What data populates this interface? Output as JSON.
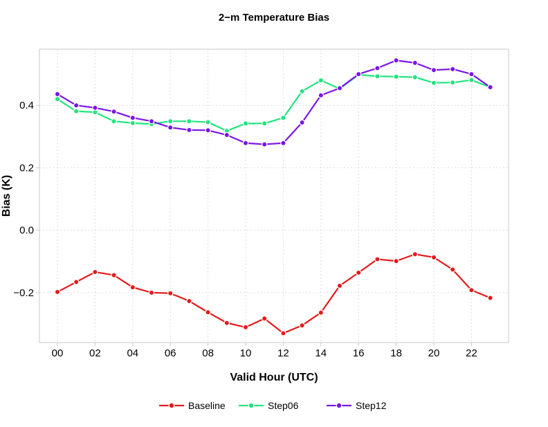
{
  "chart_data": {
    "type": "line",
    "title": "2−m Temperature Bias",
    "xlabel": "Valid Hour (UTC)",
    "ylabel": "Bias (K)",
    "categories": [
      "00",
      "01",
      "02",
      "03",
      "04",
      "05",
      "06",
      "07",
      "08",
      "09",
      "10",
      "11",
      "12",
      "13",
      "14",
      "15",
      "16",
      "17",
      "18",
      "19",
      "20",
      "21",
      "22",
      "23"
    ],
    "x_tick_labels": [
      "00",
      "02",
      "04",
      "06",
      "08",
      "10",
      "12",
      "14",
      "16",
      "18",
      "20",
      "22"
    ],
    "y_ticks": [
      -0.2,
      0.0,
      0.2,
      0.4
    ],
    "y_tick_labels": [
      "−0.2",
      "0.0",
      "0.2",
      "0.4"
    ],
    "ylim": [
      -0.36,
      0.58
    ],
    "grid": true,
    "legend_position": "bottom",
    "series": [
      {
        "name": "Baseline",
        "color": "#e41a1c",
        "values": [
          -0.198,
          -0.166,
          -0.134,
          -0.144,
          -0.183,
          -0.2,
          -0.202,
          -0.227,
          -0.263,
          -0.297,
          -0.311,
          -0.283,
          -0.33,
          -0.305,
          -0.264,
          -0.178,
          -0.136,
          -0.093,
          -0.099,
          -0.077,
          -0.087,
          -0.126,
          -0.192,
          -0.217
        ]
      },
      {
        "name": "Step06",
        "color": "#1fe57d",
        "values": [
          0.42,
          0.381,
          0.378,
          0.349,
          0.343,
          0.34,
          0.349,
          0.349,
          0.346,
          0.318,
          0.342,
          0.342,
          0.36,
          0.445,
          0.48,
          0.453,
          0.498,
          0.493,
          0.492,
          0.49,
          0.472,
          0.473,
          0.481,
          0.458
        ]
      },
      {
        "name": "Step12",
        "color": "#7b14e6",
        "values": [
          0.436,
          0.4,
          0.392,
          0.38,
          0.36,
          0.349,
          0.329,
          0.321,
          0.32,
          0.305,
          0.279,
          0.275,
          0.279,
          0.345,
          0.432,
          0.455,
          0.5,
          0.519,
          0.544,
          0.536,
          0.513,
          0.516,
          0.5,
          0.458
        ]
      }
    ]
  }
}
